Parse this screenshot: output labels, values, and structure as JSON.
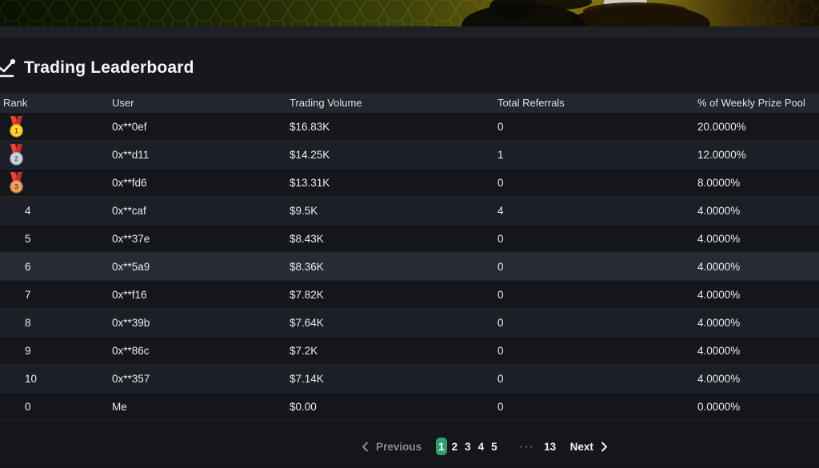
{
  "page": {
    "title": "Trading Leaderboard"
  },
  "table": {
    "columns": [
      "Rank",
      "User",
      "Trading Volume",
      "Total Referrals",
      "% of Weekly Prize Pool"
    ],
    "rows": [
      {
        "rank": "1",
        "medal": "gold",
        "user": "0x**0ef",
        "volume": "$16.83K",
        "referrals": "0",
        "prize": "20.0000%"
      },
      {
        "rank": "2",
        "medal": "silver",
        "user": "0x**d11",
        "volume": "$14.25K",
        "referrals": "1",
        "prize": "12.0000%"
      },
      {
        "rank": "3",
        "medal": "bronze",
        "user": "0x**fd6",
        "volume": "$13.31K",
        "referrals": "0",
        "prize": "8.0000%"
      },
      {
        "rank": "4",
        "user": "0x**caf",
        "volume": "$9.5K",
        "referrals": "4",
        "prize": "4.0000%"
      },
      {
        "rank": "5",
        "user": "0x**37e",
        "volume": "$8.43K",
        "referrals": "0",
        "prize": "4.0000%"
      },
      {
        "rank": "6",
        "user": "0x**5a9",
        "volume": "$8.36K",
        "referrals": "0",
        "prize": "4.0000%",
        "highlighted": true
      },
      {
        "rank": "7",
        "user": "0x**f16",
        "volume": "$7.82K",
        "referrals": "0",
        "prize": "4.0000%"
      },
      {
        "rank": "8",
        "user": "0x**39b",
        "volume": "$7.64K",
        "referrals": "0",
        "prize": "4.0000%"
      },
      {
        "rank": "9",
        "user": "0x**86c",
        "volume": "$7.2K",
        "referrals": "0",
        "prize": "4.0000%"
      },
      {
        "rank": "10",
        "user": "0x**357",
        "volume": "$7.14K",
        "referrals": "0",
        "prize": "4.0000%"
      },
      {
        "rank": "0",
        "user": "Me",
        "volume": "$0.00",
        "referrals": "0",
        "prize": "0.0000%"
      }
    ]
  },
  "pagination": {
    "previous_label": "Previous",
    "next_label": "Next",
    "pages": [
      "1",
      "2",
      "3",
      "4",
      "5"
    ],
    "active_page": "1",
    "ellipsis": "···",
    "last_page": "13"
  },
  "colors": {
    "accent_green": "#2fa06a",
    "row_highlight": "#272b35",
    "header_row_bg": "#23262d",
    "medal_gold": {
      "ribbon": "#e8423a",
      "ribbon_dark": "#c22d26",
      "fill": "#fcd535",
      "border": "#d9a416",
      "number": "#7a5b05"
    },
    "medal_silver": {
      "ribbon": "#e8423a",
      "ribbon_dark": "#c22d26",
      "fill": "#ccd6dd",
      "border": "#9aabb8",
      "number": "#55616c"
    },
    "medal_bronze": {
      "ribbon": "#e8423a",
      "ribbon_dark": "#c22d26",
      "fill": "#eda36a",
      "border": "#c27236",
      "number": "#79421a"
    }
  }
}
